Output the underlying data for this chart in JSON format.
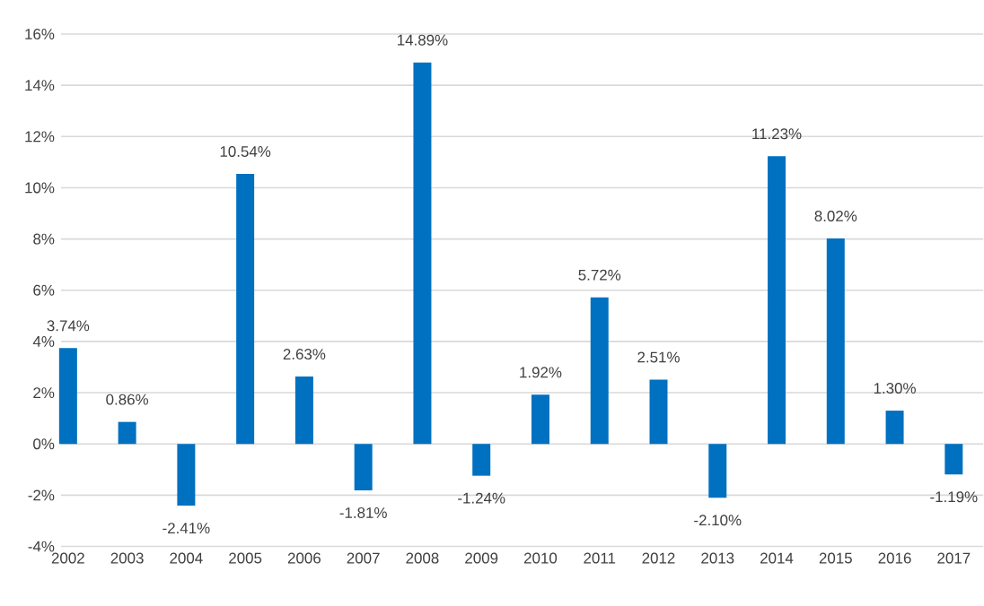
{
  "chart_data": {
    "type": "bar",
    "categories": [
      "2002",
      "2003",
      "2004",
      "2005",
      "2006",
      "2007",
      "2008",
      "2009",
      "2010",
      "2011",
      "2012",
      "2013",
      "2014",
      "2015",
      "2016",
      "2017"
    ],
    "values": [
      3.74,
      0.86,
      -2.41,
      10.54,
      2.63,
      -1.81,
      14.89,
      -1.24,
      1.92,
      5.72,
      2.51,
      -2.1,
      11.23,
      8.02,
      1.3,
      -1.19
    ],
    "value_labels": [
      "3.74%",
      "0.86%",
      "-2.41%",
      "10.54%",
      "2.63%",
      "-1.81%",
      "14.89%",
      "-1.24%",
      "1.92%",
      "5.72%",
      "2.51%",
      "-2.10%",
      "11.23%",
      "8.02%",
      "1.30%",
      "-1.19%"
    ],
    "color": "#0070c0",
    "ylim": [
      -4,
      16
    ],
    "yticks": [
      {
        "value": -4,
        "label": "-4%"
      },
      {
        "value": -2,
        "label": "-2%"
      },
      {
        "value": 0,
        "label": "0%"
      },
      {
        "value": 2,
        "label": "2%"
      },
      {
        "value": 4,
        "label": "4%"
      },
      {
        "value": 6,
        "label": "6%"
      },
      {
        "value": 8,
        "label": "8%"
      },
      {
        "value": 10,
        "label": "10%"
      },
      {
        "value": 12,
        "label": "12%"
      },
      {
        "value": 14,
        "label": "14%"
      },
      {
        "value": 16,
        "label": "16%"
      }
    ],
    "grid": "y"
  }
}
